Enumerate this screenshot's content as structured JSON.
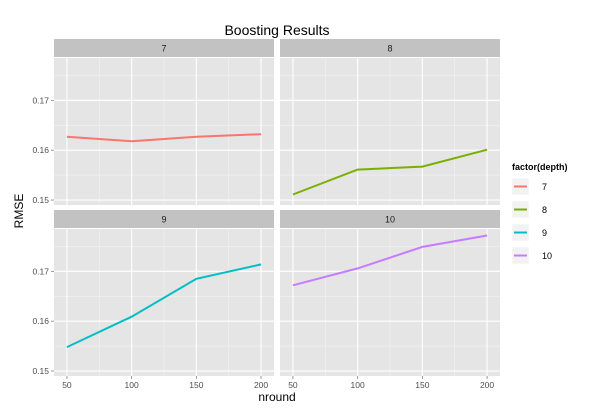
{
  "chart_data": {
    "type": "line",
    "title": "Boosting Results",
    "xlabel": "nround",
    "ylabel": "RMSE",
    "x_ticks": [
      "50",
      "100",
      "150",
      "200"
    ],
    "y_ticks": [
      "0.15",
      "0.16",
      "0.17"
    ],
    "xlim": [
      40,
      210
    ],
    "ylim": [
      0.149,
      0.1785
    ],
    "grid": true,
    "facet_by": "depth",
    "legend": {
      "title": "factor(depth)",
      "position": "right"
    },
    "series": [
      {
        "name": "7",
        "color": "#f8766d",
        "x": [
          50,
          100,
          150,
          200
        ],
        "y": [
          0.1627,
          0.1618,
          0.1627,
          0.1632
        ]
      },
      {
        "name": "8",
        "color": "#7cae00",
        "x": [
          50,
          100,
          150,
          200
        ],
        "y": [
          0.1511,
          0.1561,
          0.1567,
          0.1601
        ]
      },
      {
        "name": "9",
        "color": "#00bfc4",
        "x": [
          50,
          100,
          150,
          200
        ],
        "y": [
          0.1548,
          0.1609,
          0.1685,
          0.1714
        ]
      },
      {
        "name": "10",
        "color": "#c77cff",
        "x": [
          50,
          100,
          150,
          200
        ],
        "y": [
          0.1672,
          0.1706,
          0.1749,
          0.1772
        ]
      }
    ]
  }
}
